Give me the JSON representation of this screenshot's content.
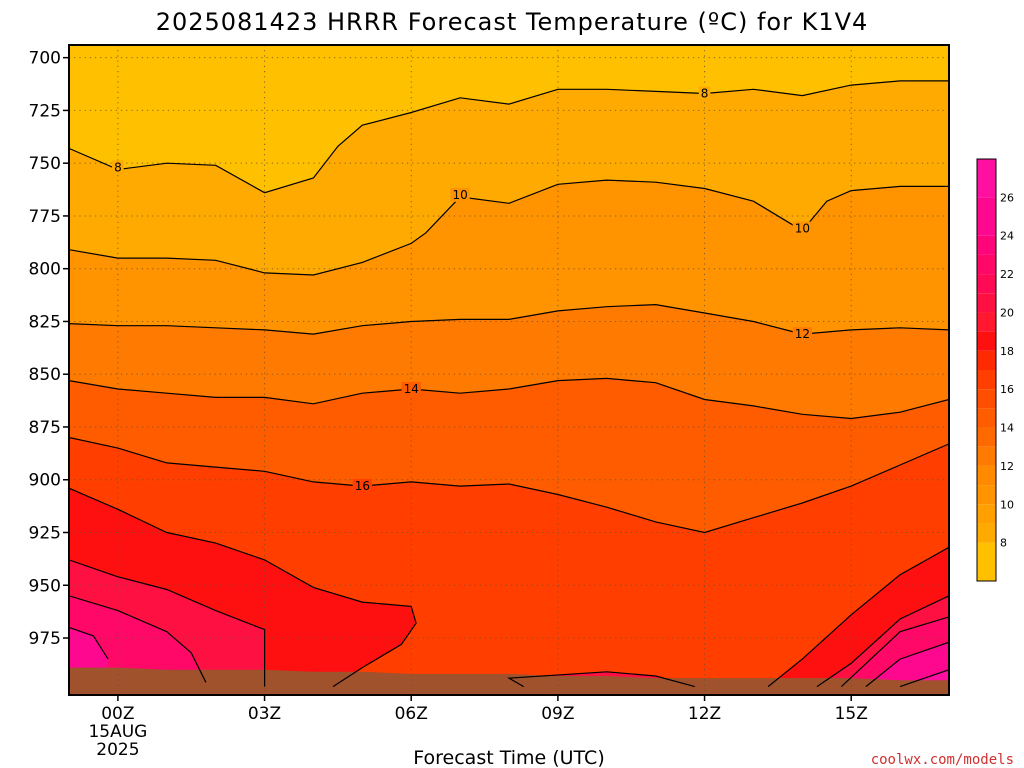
{
  "chart_data": {
    "type": "contour",
    "title": "2025081423 HRRR Forecast Temperature (ºC) for K1V4",
    "xlabel": "Forecast Time (UTC)",
    "ylabel": "",
    "credit": "coolwx.com/models",
    "x_ticks": [
      {
        "hour": 0,
        "label": "00Z",
        "label2": "15AUG",
        "label3": "2025"
      },
      {
        "hour": 3,
        "label": "03Z"
      },
      {
        "hour": 6,
        "label": "06Z"
      },
      {
        "hour": 9,
        "label": "09Z"
      },
      {
        "hour": 12,
        "label": "12Z"
      },
      {
        "hour": 15,
        "label": "15Z"
      }
    ],
    "y_ticks": [
      700,
      725,
      750,
      775,
      800,
      825,
      850,
      875,
      900,
      925,
      950,
      975
    ],
    "xlim_hours": [
      -1,
      17
    ],
    "ylim_hPa": [
      694,
      1002
    ],
    "y_scale": "pressure (increasing downward)",
    "grid": true,
    "colorbar": {
      "labels": [
        8,
        10,
        12,
        14,
        16,
        18,
        20,
        22,
        24,
        26
      ],
      "levels": [
        {
          "min": 6,
          "max": 8,
          "color": "#FFC000"
        },
        {
          "min": 8,
          "max": 9,
          "color": "#FFAA00"
        },
        {
          "min": 9,
          "max": 10,
          "color": "#FFA000"
        },
        {
          "min": 10,
          "max": 11,
          "color": "#FF9400"
        },
        {
          "min": 11,
          "max": 12,
          "color": "#FF8A00"
        },
        {
          "min": 12,
          "max": 13,
          "color": "#FF7A00"
        },
        {
          "min": 13,
          "max": 14,
          "color": "#FF6A00"
        },
        {
          "min": 14,
          "max": 15,
          "color": "#FF5C00"
        },
        {
          "min": 15,
          "max": 16,
          "color": "#FF4E00"
        },
        {
          "min": 16,
          "max": 17,
          "color": "#FF3E00"
        },
        {
          "min": 17,
          "max": 18,
          "color": "#FF2A00"
        },
        {
          "min": 18,
          "max": 19,
          "color": "#FF1010"
        },
        {
          "min": 19,
          "max": 20,
          "color": "#FF1830"
        },
        {
          "min": 20,
          "max": 21,
          "color": "#FF1042"
        },
        {
          "min": 21,
          "max": 22,
          "color": "#FF0A55"
        },
        {
          "min": 22,
          "max": 23,
          "color": "#FF0868"
        },
        {
          "min": 23,
          "max": 24,
          "color": "#FF057A"
        },
        {
          "min": 24,
          "max": 26,
          "color": "#FF0890"
        },
        {
          "min": 26,
          "max": 28,
          "color": "#FF10A0"
        }
      ]
    },
    "contours": [
      {
        "value": 8,
        "label": "8",
        "label_at": [
          [
            0,
            752
          ],
          [
            12,
            717
          ]
        ],
        "points": [
          [
            -1,
            743
          ],
          [
            0,
            753
          ],
          [
            1,
            750
          ],
          [
            2,
            751
          ],
          [
            3,
            764
          ],
          [
            4,
            757
          ],
          [
            4.5,
            742
          ],
          [
            5,
            732
          ],
          [
            6,
            726
          ],
          [
            7,
            719
          ],
          [
            8,
            722
          ],
          [
            9,
            715
          ],
          [
            10,
            715
          ],
          [
            11,
            716
          ],
          [
            12,
            717
          ],
          [
            13,
            715
          ],
          [
            14,
            718
          ],
          [
            15,
            713
          ],
          [
            16,
            711
          ],
          [
            17,
            711
          ]
        ]
      },
      {
        "value": 10,
        "label": "10",
        "label_at": [
          [
            7,
            765
          ],
          [
            14,
            781
          ]
        ],
        "points": [
          [
            -1,
            791
          ],
          [
            0,
            795
          ],
          [
            1,
            795
          ],
          [
            2,
            796
          ],
          [
            3,
            802
          ],
          [
            4,
            803
          ],
          [
            5,
            797
          ],
          [
            6,
            788
          ],
          [
            6.3,
            783
          ],
          [
            7,
            766
          ],
          [
            8,
            769
          ],
          [
            9,
            760
          ],
          [
            10,
            758
          ],
          [
            11,
            759
          ],
          [
            12,
            762
          ],
          [
            13,
            768
          ],
          [
            14,
            782
          ],
          [
            14.5,
            768
          ],
          [
            15,
            763
          ],
          [
            16,
            761
          ],
          [
            17,
            761
          ]
        ]
      },
      {
        "value": 12,
        "label": "12",
        "label_at": [
          [
            14,
            831
          ]
        ],
        "points": [
          [
            -1,
            826
          ],
          [
            0,
            827
          ],
          [
            1,
            827
          ],
          [
            2,
            828
          ],
          [
            3,
            829
          ],
          [
            4,
            831
          ],
          [
            5,
            827
          ],
          [
            6,
            825
          ],
          [
            7,
            824
          ],
          [
            8,
            824
          ],
          [
            9,
            820
          ],
          [
            10,
            818
          ],
          [
            11,
            817
          ],
          [
            12,
            821
          ],
          [
            13,
            825
          ],
          [
            14,
            831
          ],
          [
            15,
            829
          ],
          [
            16,
            828
          ],
          [
            17,
            829
          ]
        ]
      },
      {
        "value": 14,
        "label": "14",
        "label_at": [
          [
            6,
            857
          ]
        ],
        "points": [
          [
            -1,
            853
          ],
          [
            0,
            857
          ],
          [
            1,
            859
          ],
          [
            2,
            861
          ],
          [
            3,
            861
          ],
          [
            4,
            864
          ],
          [
            5,
            859
          ],
          [
            6,
            857
          ],
          [
            7,
            859
          ],
          [
            8,
            857
          ],
          [
            9,
            853
          ],
          [
            10,
            852
          ],
          [
            11,
            854
          ],
          [
            12,
            862
          ],
          [
            13,
            865
          ],
          [
            14,
            869
          ],
          [
            15,
            871
          ],
          [
            16,
            868
          ],
          [
            17,
            862
          ]
        ]
      },
      {
        "value": 16,
        "label": "16",
        "label_at": [
          [
            5,
            903
          ]
        ],
        "points": [
          [
            -1,
            880
          ],
          [
            0,
            885
          ],
          [
            1,
            892
          ],
          [
            2,
            894
          ],
          [
            3,
            896
          ],
          [
            4,
            901
          ],
          [
            5,
            903
          ],
          [
            6,
            901
          ],
          [
            7,
            903
          ],
          [
            8,
            902
          ],
          [
            9,
            907
          ],
          [
            10,
            913
          ],
          [
            11,
            920
          ],
          [
            12,
            925
          ],
          [
            13,
            918
          ],
          [
            14,
            911
          ],
          [
            15,
            903
          ],
          [
            16,
            893
          ],
          [
            17,
            883
          ]
        ]
      },
      {
        "value": 18,
        "points": [
          [
            -1,
            904
          ],
          [
            0,
            914
          ],
          [
            1,
            925
          ],
          [
            2,
            930
          ],
          [
            3,
            938
          ],
          [
            4,
            951
          ],
          [
            5,
            958
          ],
          [
            6,
            960
          ],
          [
            6.1,
            968
          ],
          [
            5.8,
            978
          ],
          [
            5,
            989
          ],
          [
            4.4,
            998
          ]
        ]
      },
      {
        "value": 18,
        "points": [
          [
            13.3,
            998
          ],
          [
            14,
            985
          ],
          [
            15,
            964
          ],
          [
            16,
            945
          ],
          [
            17,
            932
          ]
        ]
      },
      {
        "value": 20,
        "points": [
          [
            -1,
            938
          ],
          [
            0,
            946
          ],
          [
            1,
            952
          ],
          [
            2,
            962
          ],
          [
            3,
            971
          ],
          [
            3,
            985
          ],
          [
            3,
            998
          ]
        ]
      },
      {
        "value": 20,
        "points": [
          [
            8.3,
            998
          ],
          [
            8,
            994
          ],
          [
            10,
            991
          ],
          [
            11,
            993
          ],
          [
            11.8,
            998
          ]
        ]
      },
      {
        "value": 20,
        "points": [
          [
            14.3,
            998
          ],
          [
            15,
            987
          ],
          [
            16,
            966
          ],
          [
            17,
            955
          ]
        ]
      },
      {
        "value": 22,
        "points": [
          [
            -1,
            955
          ],
          [
            0,
            962
          ],
          [
            1,
            972
          ],
          [
            1.5,
            982
          ],
          [
            1.8,
            996
          ]
        ]
      },
      {
        "value": 22,
        "points": [
          [
            14.8,
            998
          ],
          [
            15.4,
            985
          ],
          [
            16,
            972
          ],
          [
            17,
            965
          ]
        ]
      },
      {
        "value": 24,
        "points": [
          [
            -1,
            970
          ],
          [
            -0.5,
            974
          ],
          [
            -0.2,
            985
          ]
        ]
      },
      {
        "value": 24,
        "points": [
          [
            15.3,
            998
          ],
          [
            16,
            985
          ],
          [
            17,
            977
          ]
        ]
      },
      {
        "value": 26,
        "points": [
          [
            16,
            998
          ],
          [
            17,
            990
          ]
        ]
      }
    ],
    "ground": {
      "color": "#A0522D",
      "surface_hPa": [
        [
          -1,
          989
        ],
        [
          0,
          989
        ],
        [
          1,
          990
        ],
        [
          2,
          990
        ],
        [
          3,
          990
        ],
        [
          4,
          991
        ],
        [
          5,
          991
        ],
        [
          6,
          992
        ],
        [
          7,
          992
        ],
        [
          8,
          992
        ],
        [
          9,
          993
        ],
        [
          10,
          993
        ],
        [
          11,
          994
        ],
        [
          12,
          994
        ],
        [
          13,
          994
        ],
        [
          14,
          994
        ],
        [
          15,
          994
        ],
        [
          16,
          995
        ],
        [
          17,
          995
        ]
      ]
    }
  }
}
